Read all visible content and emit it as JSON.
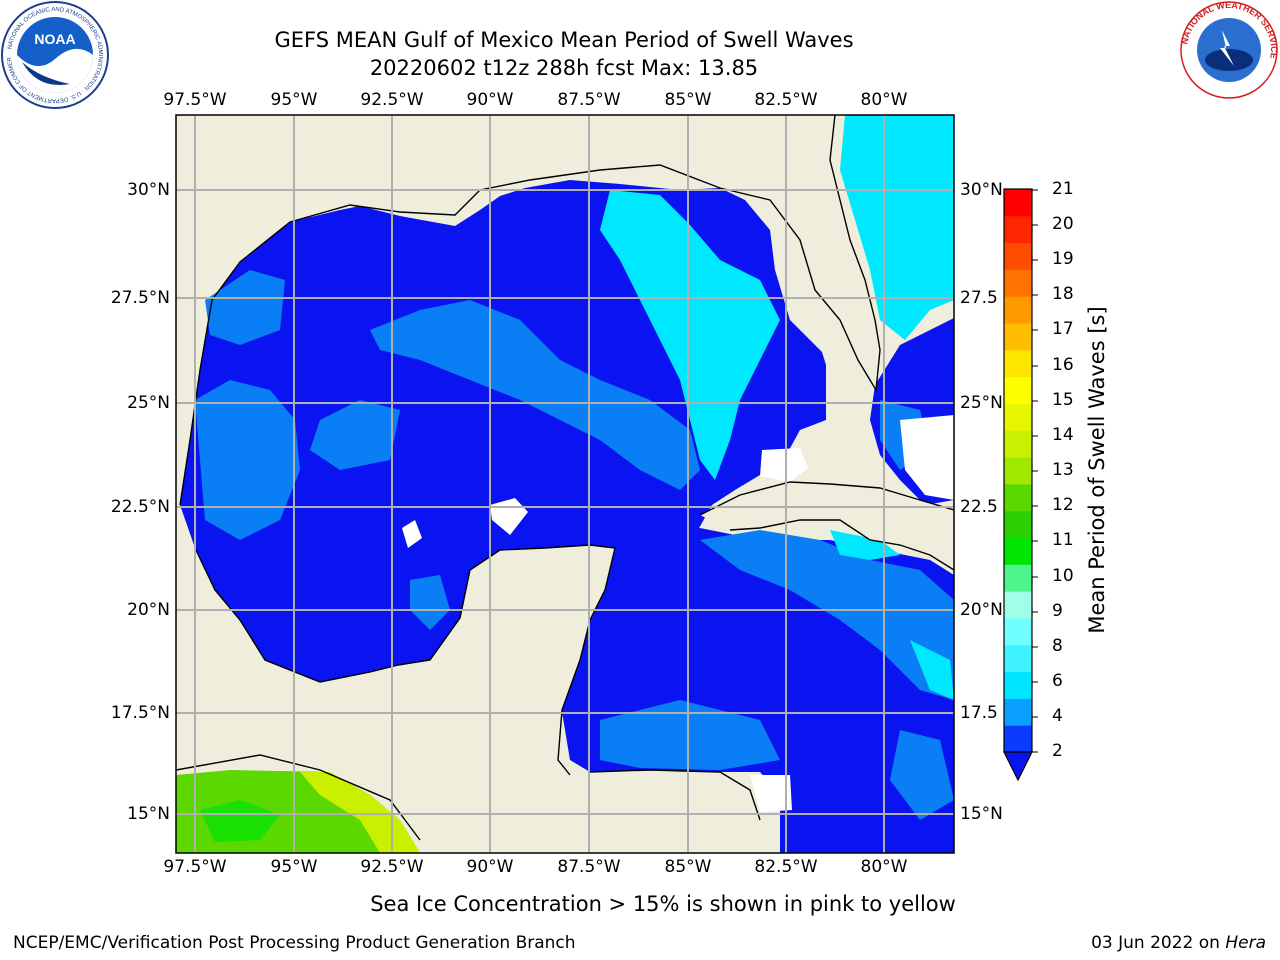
{
  "title": {
    "line1": "GEFS MEAN Gulf of Mexico Mean Period of Swell Waves",
    "line2": "20220602 t12z 288h fcst   Max: 13.85"
  },
  "lon_labels": [
    "97.5°W",
    "95°W",
    "92.5°W",
    "90°W",
    "87.5°W",
    "85°W",
    "82.5°W",
    "80°W"
  ],
  "lat_labels_left": [
    "30°N",
    "27.5°N",
    "25°N",
    "22.5°N",
    "20°N",
    "17.5°N",
    "15°N"
  ],
  "lat_labels_right": [
    "30°N",
    "27.5",
    "25°N",
    "22.5",
    "20°N",
    "17.5",
    "15°N"
  ],
  "colorbar": {
    "label": "Mean Period of Swell Waves [s]",
    "ticks": [
      "2",
      "4",
      "6",
      "8",
      "9",
      "10",
      "11",
      "12",
      "13",
      "14",
      "15",
      "16",
      "17",
      "18",
      "19",
      "20",
      "21"
    ],
    "colors": [
      "#0a3bff",
      "#0aa0ff",
      "#00e5ff",
      "#3ff2ff",
      "#70ffff",
      "#a0ffe8",
      "#4df58c",
      "#00e600",
      "#2ccf00",
      "#5ad900",
      "#a0e800",
      "#c8f000",
      "#e6f500",
      "#ffff00",
      "#ffe600",
      "#ffbf00",
      "#ff9900",
      "#ff7300",
      "#ff4d00",
      "#ff2600",
      "#ff0000"
    ]
  },
  "note": "Sea Ice Concentration > 15% is shown in pink to yellow",
  "footer": {
    "left": "NCEP/EMC/Verification Post Processing Product Generation Branch",
    "right_date": "03 Jun 2022 on ",
    "right_host": "Hera"
  },
  "logos": {
    "left": "NOAA",
    "left_ring": "NATIONAL OCEANIC AND ATMOSPHERIC ADMINISTRATION · U.S. DEPARTMENT OF COMMERCE",
    "right_ring": "NATIONAL WEATHER SERVICE"
  },
  "map_colors": {
    "land": "#efeddc",
    "deep": "#0a14f0",
    "mid": "#0a7ff5",
    "light": "#00e8ff",
    "green": "#5ad800",
    "yellow": "#c8f000",
    "grid": "#b0b0b0"
  }
}
